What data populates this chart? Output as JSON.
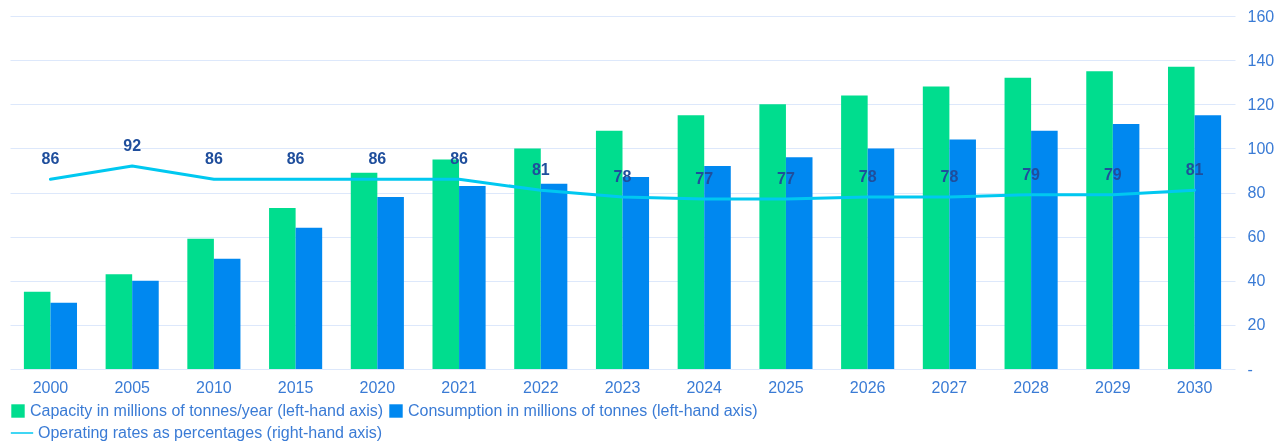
{
  "chart_data": {
    "type": "bar",
    "categories": [
      "2000",
      "2005",
      "2010",
      "2015",
      "2020",
      "2021",
      "2022",
      "2023",
      "2024",
      "2025",
      "2026",
      "2027",
      "2028",
      "2029",
      "2030"
    ],
    "series": [
      {
        "name": "Capacity in millions of tonnes/year (left-hand axis)",
        "color": "#00dd8e",
        "values": [
          35,
          43,
          59,
          73,
          89,
          95,
          100,
          108,
          115,
          120,
          124,
          128,
          132,
          135,
          137
        ]
      },
      {
        "name": "Consumption in millions of tonnes (left-hand axis)",
        "color": "#0088f0",
        "values": [
          30,
          40,
          50,
          64,
          78,
          83,
          84,
          87,
          92,
          96,
          100,
          104,
          108,
          111,
          115
        ]
      },
      {
        "name": "Operating rates as percentages (right-hand axis)",
        "type": "line",
        "color": "#00c8f0",
        "values": [
          86,
          92,
          86,
          86,
          86,
          86,
          81,
          78,
          77,
          77,
          78,
          78,
          79,
          79,
          81
        ],
        "value_labels": [
          "86",
          "92",
          "86",
          "86",
          "86",
          "86",
          "81",
          "78",
          "77",
          "77",
          "78",
          "78",
          "79",
          "79",
          "81"
        ]
      }
    ],
    "ylim": [
      0,
      160
    ],
    "yticks": [
      {
        "value": 0,
        "label": "-"
      },
      20,
      40,
      60,
      80,
      100,
      120,
      140,
      160
    ],
    "grid": "y",
    "legend": "bottom"
  }
}
